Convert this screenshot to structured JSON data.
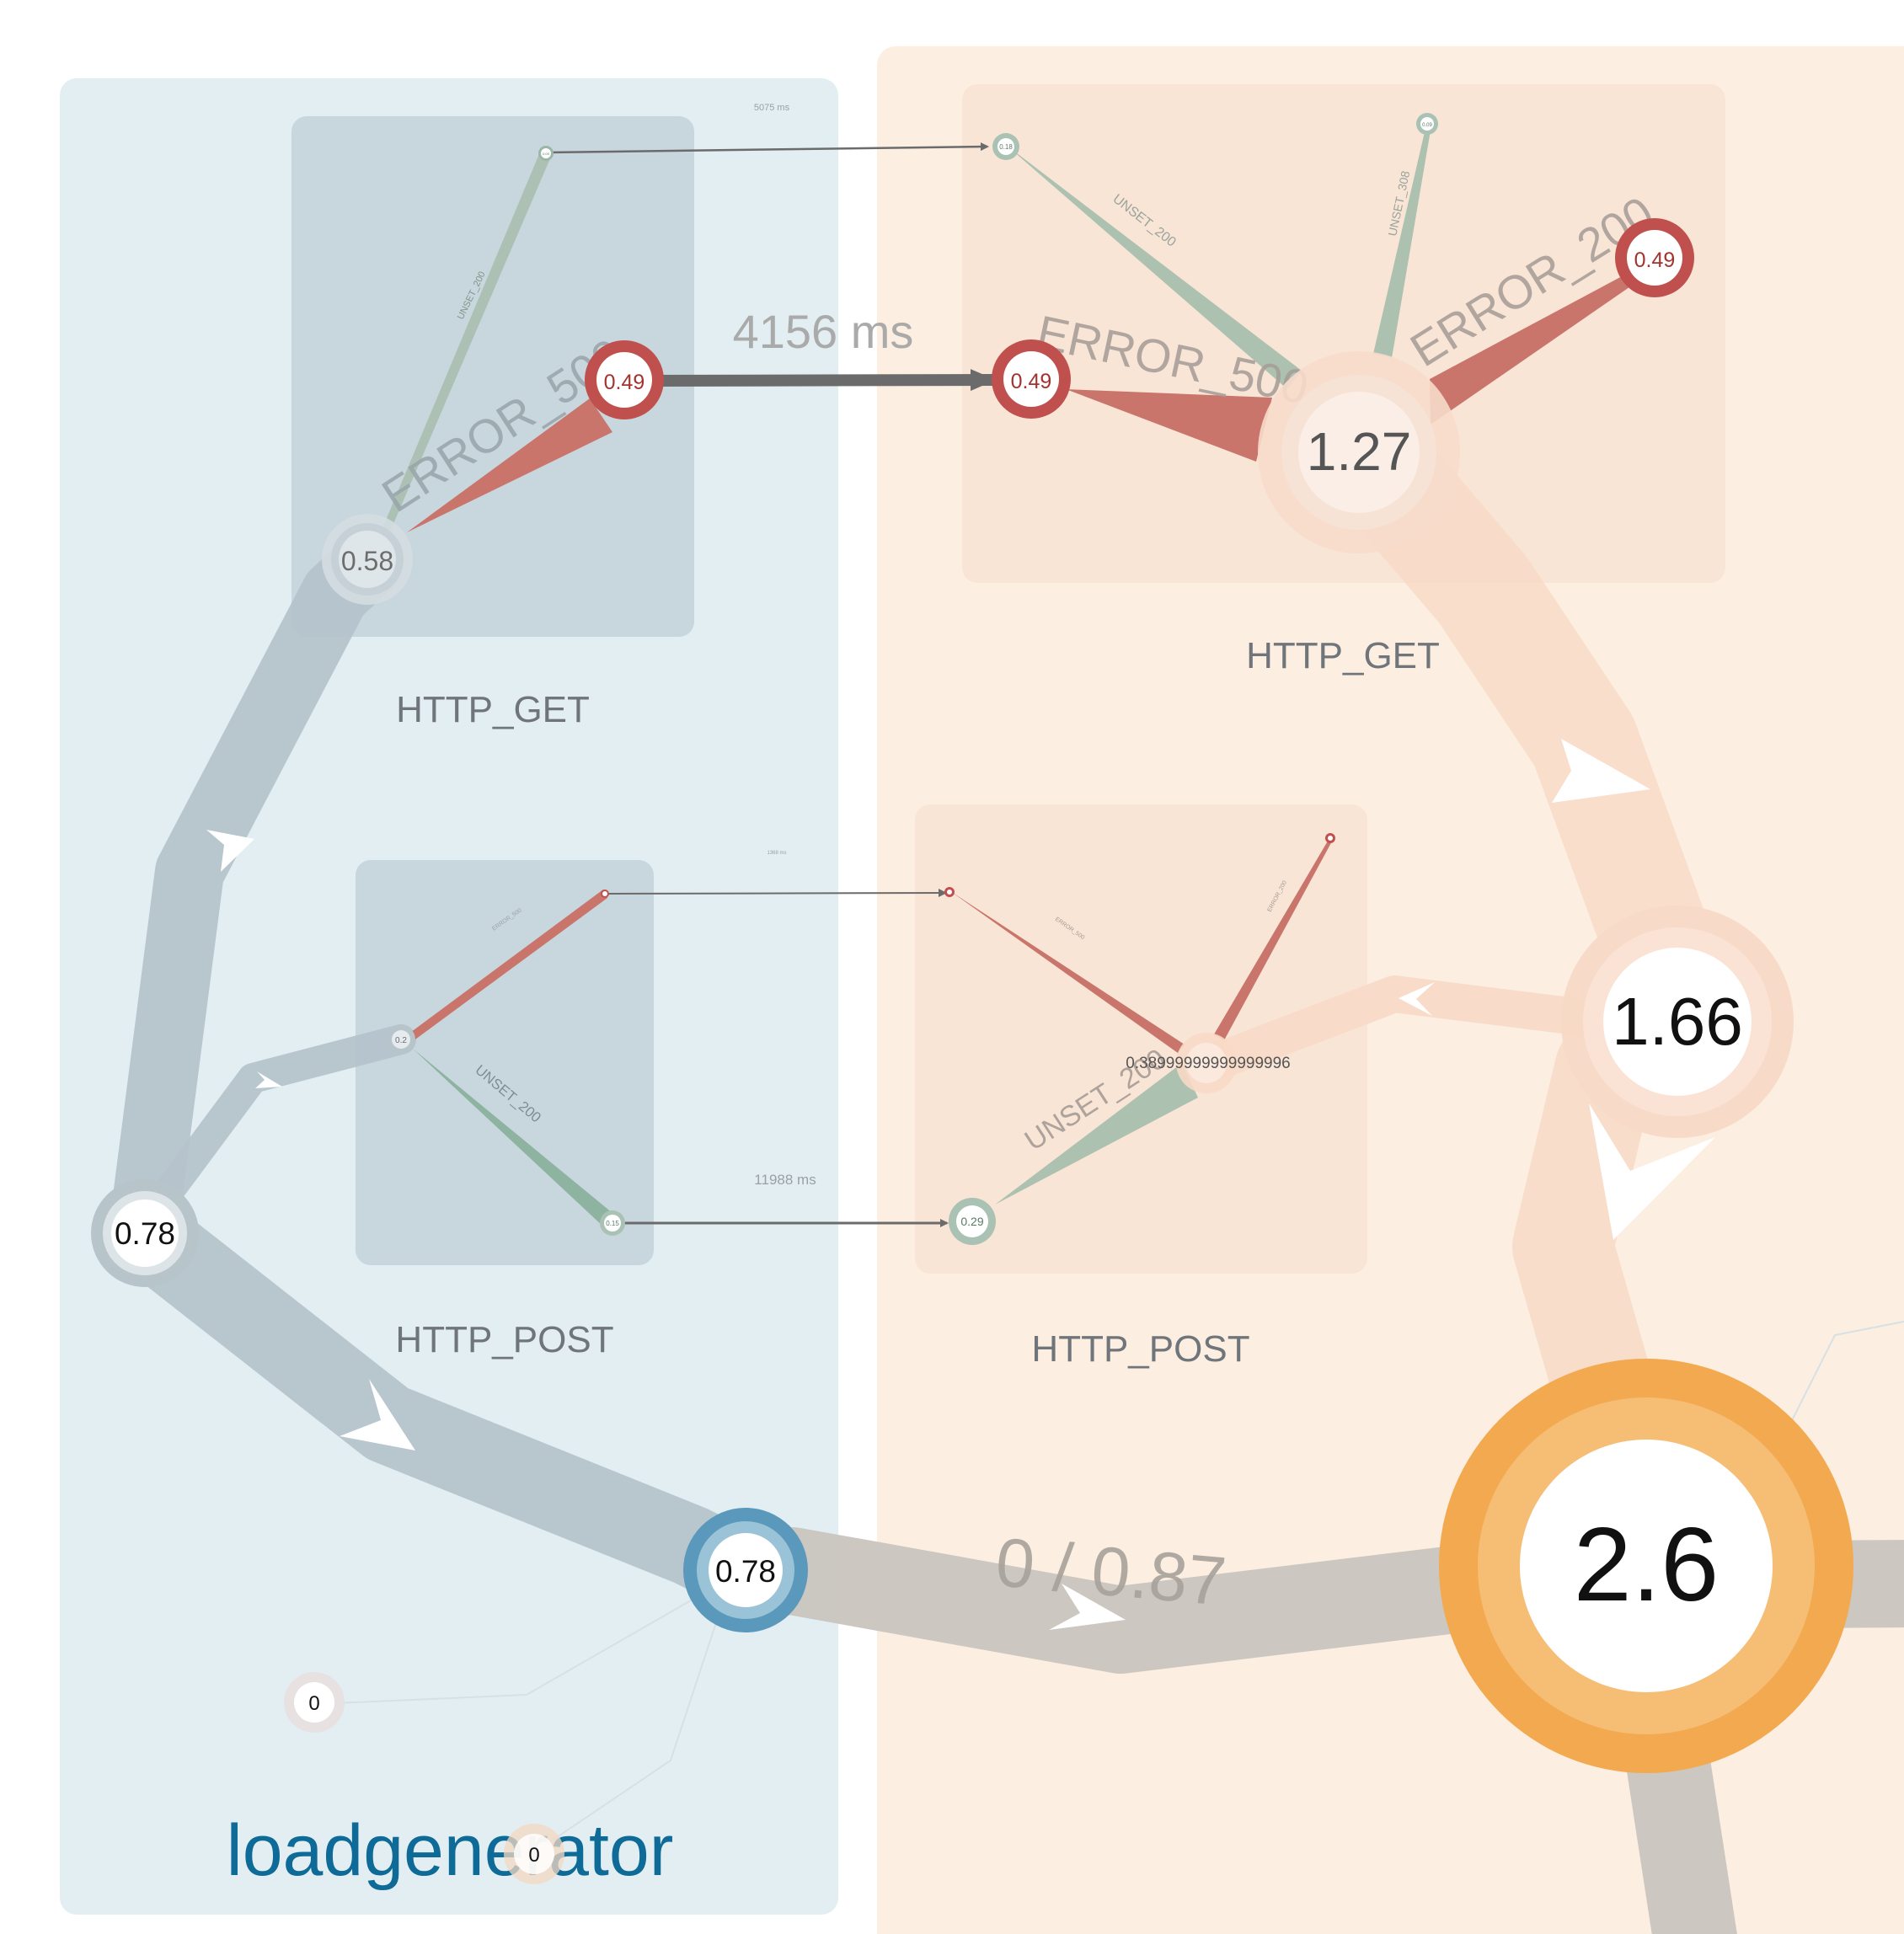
{
  "services": {
    "loadgenerator": {
      "name": "loadgenerator",
      "color": "#0e6a96"
    },
    "frontend": {
      "name": ""
    }
  },
  "groups": {
    "lg_get": {
      "label": "HTTP_GET",
      "latency": "5075 ms"
    },
    "lg_post": {
      "label": "HTTP_POST",
      "latency_small": "1368 ms",
      "latency": "11988 ms"
    },
    "fe_get": {
      "label": "HTTP_GET"
    },
    "fe_post": {
      "label": "HTTP_POST"
    }
  },
  "nodes": {
    "lg_get_root": "0.58",
    "lg_get_error": "0.49",
    "lg_get_unset": "0.09",
    "lg_post_root": "0.2",
    "lg_post_unset": "0.15",
    "lg_root": "0.78",
    "lg_exit": "0.78",
    "lg_idle_a": "0",
    "lg_idle_b": "0",
    "fe_get_root": "1.27",
    "fe_get_error_in": "0.49",
    "fe_get_error_out": "0.49",
    "fe_get_unset200": "0.18",
    "fe_get_unset308": "0.09",
    "fe_post_root": "0.38999999999999996",
    "fe_post_unset": "0.29",
    "fe_mid": "1.66",
    "fe_main": "2.6"
  },
  "edges": {
    "lg_get_unset": "UNSET_200",
    "lg_get_error": "ERROR_500",
    "lg_post_error": "ERROR_500",
    "lg_post_unset": "UNSET_200",
    "get_call": "4156 ms",
    "fe_get_unset200": "UNSET_200",
    "fe_get_unset308": "UNSET_308",
    "fe_get_error500": "ERROR_500",
    "fe_get_error200": "ERROR_200",
    "fe_post_error": "ERROR_500",
    "fe_post_error2": "ERROR_200",
    "fe_post_unset": "UNSET_200",
    "service_link": "0 / 0.87"
  },
  "colors": {
    "lg_bg": "#e3eef3",
    "fe_bg": "#fcefe1",
    "lg_group": "#c8d6dd",
    "fe_group": "#f9e5d5",
    "error": "#c9756c",
    "error_ring": "#c0504d",
    "unset": "#a9bfae",
    "flow_lg": "#b5c3cb",
    "flow_fe": "#f7d9c6",
    "flow_link": "#c9c4be",
    "orange": "#f3a94f",
    "blue_ring": "#4f93b7"
  }
}
